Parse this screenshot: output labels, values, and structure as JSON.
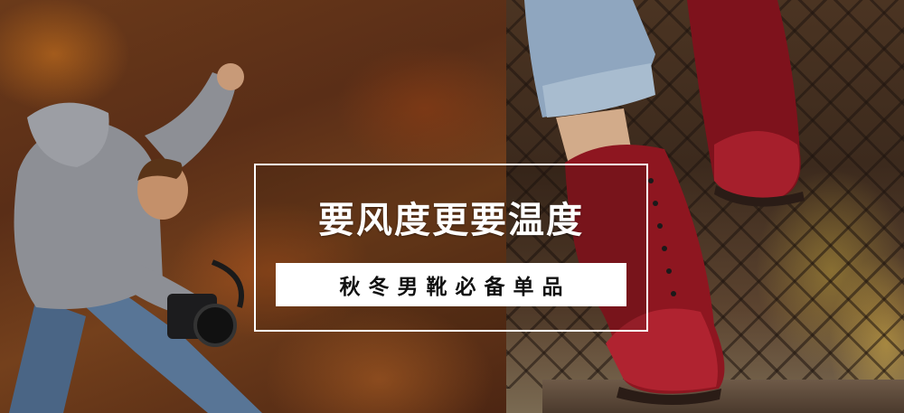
{
  "banner": {
    "headline": "要风度更要温度",
    "subtitle": "秋冬男靴必备单品"
  },
  "colors": {
    "frame_border": "#ffffff",
    "headline_text": "#ffffff",
    "subtitle_bar": "#ffffff",
    "subtitle_text": "#111111",
    "boot_leather": "#8e1620"
  }
}
